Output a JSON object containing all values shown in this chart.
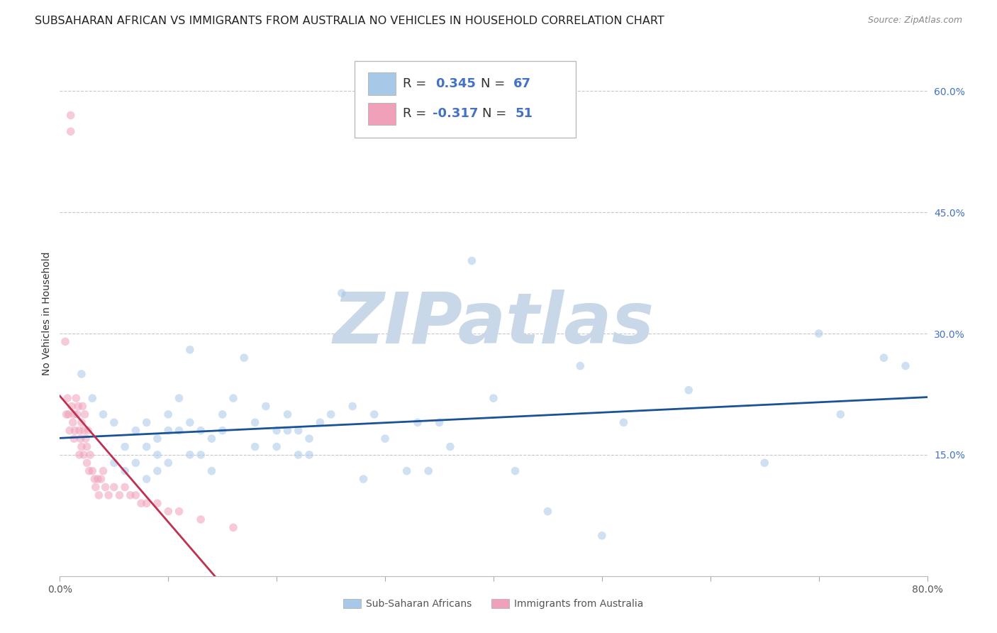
{
  "title": "SUBSAHARAN AFRICAN VS IMMIGRANTS FROM AUSTRALIA NO VEHICLES IN HOUSEHOLD CORRELATION CHART",
  "source": "Source: ZipAtlas.com",
  "ylabel": "No Vehicles in Household",
  "label_blue": "Sub-Saharan Africans",
  "label_pink": "Immigrants from Australia",
  "x_min": 0.0,
  "x_max": 0.8,
  "y_min": 0.0,
  "y_max": 0.65,
  "x_ticks": [
    0.0,
    0.1,
    0.2,
    0.3,
    0.4,
    0.5,
    0.6,
    0.7,
    0.8
  ],
  "x_tick_labels": [
    "0.0%",
    "",
    "",
    "",
    "",
    "",
    "",
    "",
    "80.0%"
  ],
  "y_ticks": [
    0.0,
    0.15,
    0.3,
    0.45,
    0.6
  ],
  "y_tick_labels": [
    "",
    "15.0%",
    "30.0%",
    "45.0%",
    "60.0%"
  ],
  "background_color": "#ffffff",
  "grid_color": "#c8c8c8",
  "blue_color": "#a8c8e8",
  "pink_color": "#f0a0b8",
  "trendline_blue": "#1a5296",
  "trendline_pink": "#c03050",
  "R_blue": 0.345,
  "N_blue": 67,
  "R_pink": -0.317,
  "N_pink": 51,
  "blue_scatter_x": [
    0.02,
    0.03,
    0.04,
    0.05,
    0.05,
    0.06,
    0.06,
    0.07,
    0.07,
    0.08,
    0.08,
    0.08,
    0.09,
    0.09,
    0.09,
    0.1,
    0.1,
    0.1,
    0.11,
    0.11,
    0.12,
    0.12,
    0.12,
    0.13,
    0.13,
    0.14,
    0.14,
    0.15,
    0.15,
    0.16,
    0.17,
    0.18,
    0.18,
    0.19,
    0.2,
    0.2,
    0.21,
    0.21,
    0.22,
    0.22,
    0.23,
    0.23,
    0.24,
    0.25,
    0.26,
    0.27,
    0.28,
    0.29,
    0.3,
    0.32,
    0.33,
    0.34,
    0.35,
    0.36,
    0.38,
    0.4,
    0.42,
    0.45,
    0.48,
    0.5,
    0.52,
    0.58,
    0.65,
    0.7,
    0.72,
    0.76,
    0.78
  ],
  "blue_scatter_y": [
    0.25,
    0.22,
    0.2,
    0.19,
    0.14,
    0.16,
    0.13,
    0.18,
    0.14,
    0.19,
    0.16,
    0.12,
    0.17,
    0.15,
    0.13,
    0.2,
    0.18,
    0.14,
    0.22,
    0.18,
    0.28,
    0.19,
    0.15,
    0.18,
    0.15,
    0.17,
    0.13,
    0.2,
    0.18,
    0.22,
    0.27,
    0.19,
    0.16,
    0.21,
    0.18,
    0.16,
    0.2,
    0.18,
    0.18,
    0.15,
    0.17,
    0.15,
    0.19,
    0.2,
    0.35,
    0.21,
    0.12,
    0.2,
    0.17,
    0.13,
    0.19,
    0.13,
    0.19,
    0.16,
    0.39,
    0.22,
    0.13,
    0.08,
    0.26,
    0.05,
    0.19,
    0.23,
    0.14,
    0.3,
    0.2,
    0.27,
    0.26
  ],
  "pink_scatter_x": [
    0.005,
    0.006,
    0.007,
    0.008,
    0.009,
    0.01,
    0.01,
    0.011,
    0.012,
    0.013,
    0.013,
    0.014,
    0.015,
    0.016,
    0.017,
    0.018,
    0.018,
    0.019,
    0.02,
    0.02,
    0.021,
    0.022,
    0.022,
    0.023,
    0.024,
    0.025,
    0.025,
    0.026,
    0.027,
    0.028,
    0.03,
    0.032,
    0.033,
    0.035,
    0.036,
    0.038,
    0.04,
    0.042,
    0.045,
    0.05,
    0.055,
    0.06,
    0.065,
    0.07,
    0.075,
    0.08,
    0.09,
    0.1,
    0.11,
    0.13,
    0.16
  ],
  "pink_scatter_y": [
    0.29,
    0.2,
    0.22,
    0.2,
    0.18,
    0.57,
    0.55,
    0.21,
    0.19,
    0.2,
    0.17,
    0.18,
    0.22,
    0.2,
    0.21,
    0.18,
    0.15,
    0.17,
    0.19,
    0.16,
    0.21,
    0.18,
    0.15,
    0.2,
    0.17,
    0.16,
    0.14,
    0.18,
    0.13,
    0.15,
    0.13,
    0.12,
    0.11,
    0.12,
    0.1,
    0.12,
    0.13,
    0.11,
    0.1,
    0.11,
    0.1,
    0.11,
    0.1,
    0.1,
    0.09,
    0.09,
    0.09,
    0.08,
    0.08,
    0.07,
    0.06
  ],
  "watermark_text": "ZIPatlas",
  "watermark_color": "#c8d8e8",
  "watermark_fontsize": 72,
  "title_fontsize": 11.5,
  "axis_label_fontsize": 10,
  "tick_label_fontsize": 10,
  "scatter_size": 70,
  "scatter_alpha": 0.55,
  "legend_fontsize": 13
}
